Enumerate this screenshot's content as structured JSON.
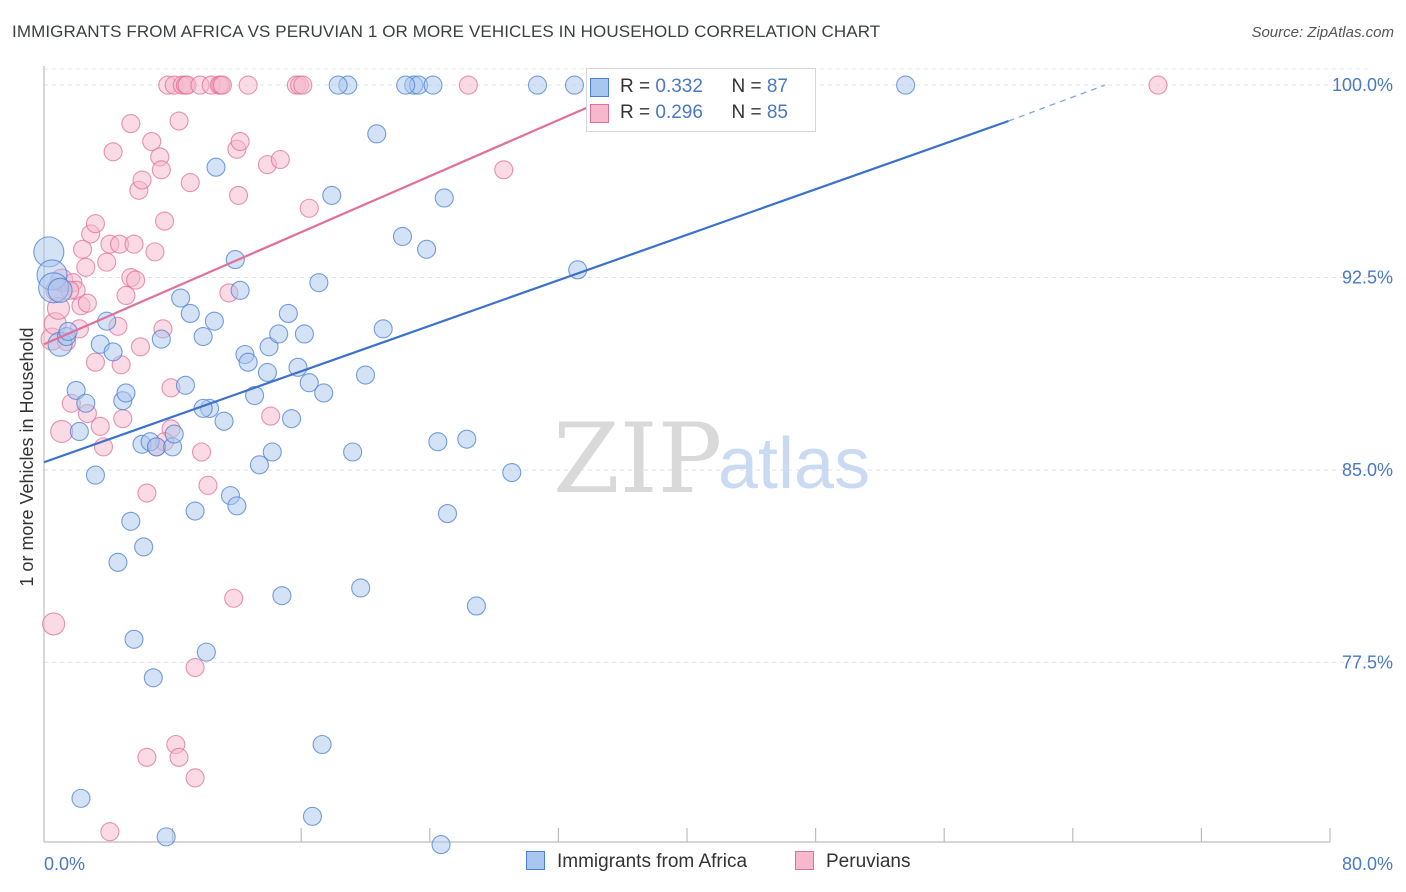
{
  "title": "IMMIGRANTS FROM AFRICA VS PERUVIAN 1 OR MORE VEHICLES IN HOUSEHOLD CORRELATION CHART",
  "source": "Source: ZipAtlas.com",
  "watermark": {
    "zip": "ZIP",
    "atlas": "atlas"
  },
  "colors": {
    "blue": "#4a7fd4",
    "blue_fill": "#a9c6ee",
    "pink": "#e0709a",
    "pink_fill": "#f6b8cc",
    "axis_text": "#4a78c4"
  },
  "legend": {
    "rows": [
      {
        "r_label": "R = ",
        "r_value": "0.332",
        "n_label": "N = ",
        "n_value": "87"
      },
      {
        "r_label": "R = ",
        "r_value": "0.296",
        "n_label": "N = ",
        "n_value": "85"
      }
    ]
  },
  "bottom_legend": {
    "series1": "Immigrants from Africa",
    "series2": "Peruvians"
  },
  "chart_data": {
    "type": "scatter",
    "title": "IMMIGRANTS FROM AFRICA VS PERUVIAN 1 OR MORE VEHICLES IN HOUSEHOLD CORRELATION CHART",
    "xlabel": "",
    "ylabel": "1 or more Vehicles in Household",
    "xlim": [
      0,
      80
    ],
    "ylim": [
      70.5,
      100.9
    ],
    "x_tick_labels": [
      "0.0%",
      "80.0%"
    ],
    "y_ticks": [
      77.5,
      85.0,
      92.5,
      100.0
    ],
    "y_tick_labels": [
      "77.5%",
      "85.0%",
      "92.5%",
      "100.0%"
    ],
    "grid": true,
    "legend_position": "top-center",
    "series": [
      {
        "name": "Immigrants from Africa",
        "color": "#4a7fd4",
        "R": 0.332,
        "N": 87,
        "trend": {
          "x0": 0,
          "y0": 85.3,
          "x1": 60,
          "y1": 98.6,
          "dashed_to_x": 66,
          "dashed_to_y": 100.0
        },
        "points": [
          [
            0.3,
            93.5
          ],
          [
            0.5,
            92.6
          ],
          [
            0.6,
            92.1
          ],
          [
            1.0,
            92.0
          ],
          [
            1.0,
            89.9
          ],
          [
            1.4,
            90.2
          ],
          [
            1.5,
            90.4
          ],
          [
            2.0,
            88.1
          ],
          [
            2.2,
            86.5
          ],
          [
            2.6,
            87.6
          ],
          [
            3.2,
            84.8
          ],
          [
            3.5,
            89.9
          ],
          [
            3.9,
            90.8
          ],
          [
            4.3,
            89.6
          ],
          [
            4.6,
            81.4
          ],
          [
            4.9,
            87.7
          ],
          [
            5.1,
            88.0
          ],
          [
            5.4,
            83.0
          ],
          [
            5.6,
            78.4
          ],
          [
            6.1,
            86.0
          ],
          [
            6.2,
            82.0
          ],
          [
            6.6,
            86.1
          ],
          [
            6.8,
            76.9
          ],
          [
            7.0,
            85.9
          ],
          [
            7.3,
            90.1
          ],
          [
            7.6,
            70.7
          ],
          [
            8.0,
            85.9
          ],
          [
            8.1,
            86.4
          ],
          [
            8.5,
            91.7
          ],
          [
            8.8,
            88.3
          ],
          [
            9.1,
            91.1
          ],
          [
            9.4,
            83.4
          ],
          [
            9.9,
            90.2
          ],
          [
            10.1,
            77.9
          ],
          [
            10.3,
            87.4
          ],
          [
            10.6,
            90.8
          ],
          [
            10.7,
            96.8
          ],
          [
            11.2,
            86.9
          ],
          [
            11.6,
            84.0
          ],
          [
            11.9,
            93.2
          ],
          [
            12.0,
            83.6
          ],
          [
            12.2,
            92.0
          ],
          [
            12.5,
            89.5
          ],
          [
            12.7,
            89.2
          ],
          [
            13.1,
            87.9
          ],
          [
            13.4,
            85.2
          ],
          [
            13.9,
            88.8
          ],
          [
            14.0,
            89.8
          ],
          [
            14.2,
            85.7
          ],
          [
            14.6,
            90.3
          ],
          [
            14.8,
            80.1
          ],
          [
            15.2,
            91.1
          ],
          [
            15.4,
            87.0
          ],
          [
            15.8,
            89.0
          ],
          [
            16.2,
            90.3
          ],
          [
            16.5,
            88.4
          ],
          [
            16.7,
            71.5
          ],
          [
            17.1,
            92.3
          ],
          [
            17.3,
            74.3
          ],
          [
            17.4,
            88.0
          ],
          [
            17.9,
            95.7
          ],
          [
            18.9,
            100.0
          ],
          [
            19.2,
            85.7
          ],
          [
            19.7,
            80.4
          ],
          [
            20.0,
            88.7
          ],
          [
            20.7,
            98.1
          ],
          [
            21.1,
            90.5
          ],
          [
            22.3,
            94.1
          ],
          [
            23.0,
            100.0
          ],
          [
            23.3,
            100.0
          ],
          [
            23.8,
            93.6
          ],
          [
            24.2,
            100.0
          ],
          [
            24.5,
            86.1
          ],
          [
            24.7,
            70.4
          ],
          [
            24.9,
            95.6
          ],
          [
            25.1,
            83.3
          ],
          [
            26.3,
            86.2
          ],
          [
            26.9,
            79.7
          ],
          [
            29.1,
            84.9
          ],
          [
            30.7,
            100.0
          ],
          [
            33.0,
            100.0
          ],
          [
            33.2,
            92.8
          ],
          [
            53.6,
            100.0
          ],
          [
            18.3,
            100.0
          ],
          [
            22.5,
            100.0
          ],
          [
            9.9,
            87.4
          ],
          [
            2.3,
            72.2
          ]
        ],
        "sizes_note": "larger circles near x=0"
      },
      {
        "name": "Peruvians",
        "color": "#e0709a",
        "R": 0.296,
        "N": 85,
        "trend": {
          "x0": 0,
          "y0": 89.9,
          "x1": 37,
          "y1": 100.0
        },
        "points": [
          [
            0.6,
            79.0
          ],
          [
            0.5,
            90.1
          ],
          [
            0.7,
            90.7
          ],
          [
            0.8,
            92.0
          ],
          [
            0.9,
            91.3
          ],
          [
            1.1,
            92.4
          ],
          [
            1.1,
            86.5
          ],
          [
            1.4,
            90.0
          ],
          [
            1.7,
            87.6
          ],
          [
            1.8,
            92.3
          ],
          [
            2.0,
            92.0
          ],
          [
            2.2,
            90.5
          ],
          [
            2.3,
            91.4
          ],
          [
            2.4,
            93.6
          ],
          [
            2.6,
            92.9
          ],
          [
            2.7,
            87.2
          ],
          [
            2.9,
            94.2
          ],
          [
            3.2,
            94.6
          ],
          [
            3.5,
            86.7
          ],
          [
            3.7,
            85.9
          ],
          [
            3.9,
            93.1
          ],
          [
            4.1,
            93.8
          ],
          [
            4.1,
            70.9
          ],
          [
            4.3,
            97.4
          ],
          [
            4.6,
            90.6
          ],
          [
            4.7,
            93.8
          ],
          [
            4.9,
            87.0
          ],
          [
            5.1,
            91.8
          ],
          [
            5.4,
            92.5
          ],
          [
            5.4,
            98.5
          ],
          [
            5.6,
            93.8
          ],
          [
            5.7,
            92.4
          ],
          [
            5.9,
            95.9
          ],
          [
            6.1,
            96.3
          ],
          [
            6.4,
            73.8
          ],
          [
            6.4,
            84.1
          ],
          [
            6.7,
            97.8
          ],
          [
            6.9,
            93.5
          ],
          [
            7.0,
            85.9
          ],
          [
            7.2,
            97.2
          ],
          [
            7.3,
            96.7
          ],
          [
            7.4,
            90.5
          ],
          [
            7.5,
            94.7
          ],
          [
            7.7,
            100.0
          ],
          [
            7.9,
            86.6
          ],
          [
            7.9,
            88.2
          ],
          [
            8.1,
            100.0
          ],
          [
            8.2,
            74.3
          ],
          [
            8.4,
            73.8
          ],
          [
            8.4,
            98.6
          ],
          [
            8.6,
            100.0
          ],
          [
            8.8,
            100.0
          ],
          [
            8.9,
            100.0
          ],
          [
            9.1,
            96.2
          ],
          [
            9.4,
            77.3
          ],
          [
            9.4,
            73.0
          ],
          [
            9.7,
            100.0
          ],
          [
            9.8,
            85.7
          ],
          [
            10.2,
            84.4
          ],
          [
            10.4,
            100.0
          ],
          [
            10.9,
            100.0
          ],
          [
            11.0,
            100.0
          ],
          [
            11.1,
            100.0
          ],
          [
            11.5,
            91.9
          ],
          [
            11.8,
            80.0
          ],
          [
            12.0,
            97.5
          ],
          [
            12.1,
            95.7
          ],
          [
            12.2,
            97.8
          ],
          [
            12.7,
            100.0
          ],
          [
            13.9,
            96.9
          ],
          [
            14.1,
            87.1
          ],
          [
            14.7,
            97.1
          ],
          [
            15.7,
            100.0
          ],
          [
            15.9,
            100.0
          ],
          [
            16.1,
            100.0
          ],
          [
            16.5,
            95.2
          ],
          [
            26.4,
            100.0
          ],
          [
            28.6,
            96.7
          ],
          [
            69.3,
            100.0
          ],
          [
            4.8,
            89.1
          ],
          [
            3.2,
            89.2
          ],
          [
            1.6,
            92.0
          ],
          [
            2.7,
            91.5
          ],
          [
            6.0,
            89.8
          ],
          [
            7.5,
            86.1
          ]
        ]
      }
    ]
  }
}
